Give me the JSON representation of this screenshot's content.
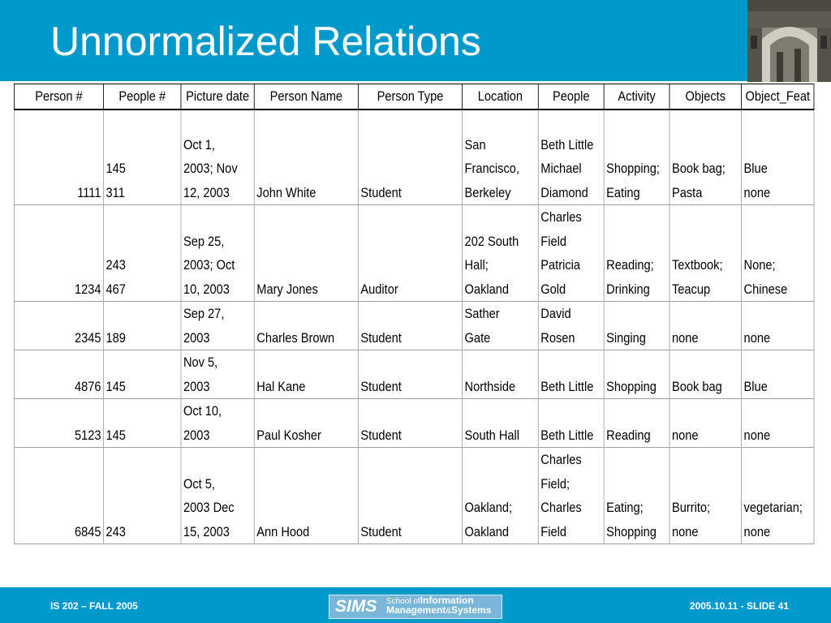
{
  "slide": {
    "title": "Unnormalized Relations"
  },
  "table": {
    "headers": [
      "Person #",
      "People #",
      "Picture date",
      "Person Name",
      "Person Type",
      "Location",
      "People",
      "Activity",
      "Objects",
      "Object_Feat"
    ],
    "rows": [
      [
        "1111",
        "145\n311",
        "Oct 1,\n2003; Nov\n12, 2003",
        "John White",
        "Student",
        "San\nFrancisco,\nBerkeley",
        "Beth Little\nMichael\nDiamond",
        "Shopping;\nEating",
        "Book bag;\nPasta",
        "Blue\nnone"
      ],
      [
        "1234",
        "243\n467",
        "Sep 25,\n2003;  Oct\n10, 2003",
        "Mary Jones",
        "Auditor",
        "202 South\nHall;\nOakland",
        "Charles\nField\nPatricia\nGold",
        "Reading;\nDrinking",
        "Textbook;\nTeacup",
        "None;\nChinese"
      ],
      [
        "2345",
        "189",
        "Sep 27,\n2003",
        "Charles Brown",
        "Student",
        "Sather\nGate",
        "David\nRosen",
        "Singing",
        "none",
        "none"
      ],
      [
        "4876",
        "145",
        "Nov 5,\n2003",
        "Hal Kane",
        "Student",
        "Northside",
        "Beth Little",
        "Shopping",
        "Book bag",
        "Blue"
      ],
      [
        "5123",
        "145",
        "Oct 10,\n2003",
        "Paul Kosher",
        "Student",
        "South Hall",
        "Beth Little",
        "Reading",
        "none",
        "none"
      ],
      [
        "6845",
        "243",
        "Oct 5,\n2003  Dec\n15, 2003",
        "Ann Hood",
        "Student",
        "Oakland;\nOakland",
        "Charles\nField;\nCharles\nField",
        "Eating;\nShopping",
        "Burrito;\nnone",
        "vegetarian;\nnone"
      ]
    ]
  },
  "footer": {
    "left": "IS 202 – FALL 2005",
    "right": "2005.10.11 - SLIDE 41",
    "logo_main": "SIMS",
    "logo_line1_prefix": "School of",
    "logo_line1_bold": "Information",
    "logo_line2": "Management",
    "logo_amp": "&",
    "logo_systems": "Systems"
  },
  "colors": {
    "accent": "#0099cc"
  }
}
